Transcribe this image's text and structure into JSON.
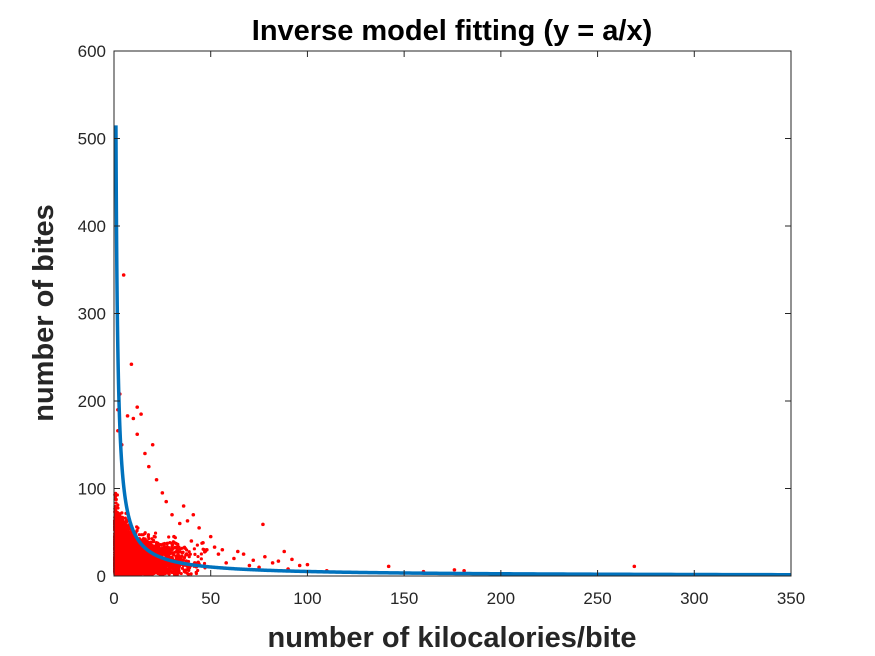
{
  "chart_data": {
    "type": "scatter",
    "title": "Inverse model fitting (y = a/x)",
    "xlabel": "number of kilocalories/bite",
    "ylabel": "number of bites",
    "xlim": [
      0,
      350
    ],
    "ylim": [
      0,
      600
    ],
    "xticks": [
      "0",
      "50",
      "100",
      "150",
      "200",
      "250",
      "300",
      "350"
    ],
    "yticks": [
      "0",
      "100",
      "200",
      "300",
      "400",
      "500",
      "600"
    ],
    "grid": false,
    "legend": "none",
    "colors": {
      "points": "#ff0000",
      "fit": "#0072bd",
      "axes": "#262626"
    },
    "series": [
      {
        "kind": "points",
        "x": [
          5,
          9,
          12,
          3,
          2,
          7,
          10,
          14,
          12,
          2,
          4,
          20,
          27,
          36,
          38,
          41,
          44,
          50,
          56,
          58,
          62,
          64,
          67,
          70,
          72,
          75,
          77,
          78,
          82,
          85,
          88,
          90,
          92,
          96,
          100,
          110,
          142,
          160,
          176,
          181,
          269,
          40,
          34,
          31,
          46,
          52,
          25,
          22,
          18,
          16,
          30,
          48,
          54
        ],
        "y": [
          344,
          242,
          193,
          208,
          166,
          183,
          180,
          185,
          162,
          190,
          150,
          150,
          85,
          80,
          63,
          70,
          55,
          45,
          30,
          15,
          20,
          28,
          25,
          12,
          18,
          10,
          59,
          22,
          15,
          17,
          28,
          8,
          19,
          12,
          13,
          6,
          11,
          5,
          7,
          6,
          11,
          40,
          60,
          45,
          38,
          33,
          95,
          110,
          125,
          140,
          70,
          30,
          25
        ]
      },
      {
        "kind": "fit",
        "a": 515,
        "x_start": 1.0,
        "x_end": 350
      }
    ],
    "point_cloud": {
      "count": 5000,
      "x_scale": 9,
      "y_amplitude": 30,
      "y_curve_a": 450,
      "y_curve_b": 6
    }
  }
}
